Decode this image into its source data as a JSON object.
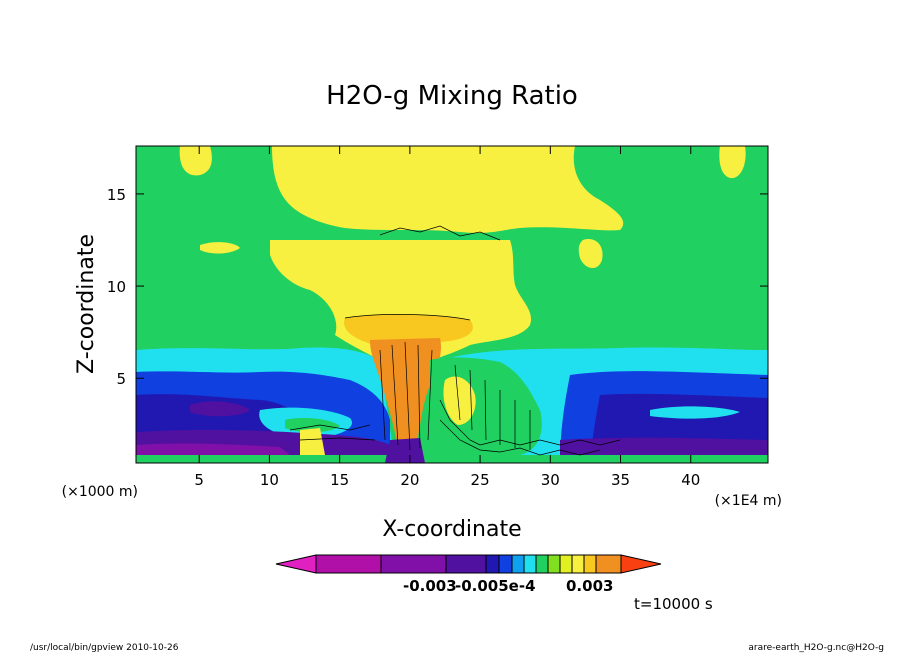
{
  "chart_data": {
    "type": "heatmap",
    "title": "H2O-g Mixing Ratio",
    "xlabel": "X-coordinate",
    "ylabel": "Z-coordinate",
    "x_unit_left": "(×1000 m)",
    "x_unit_right": "(×1E4 m)",
    "xlim": [
      0.5,
      45.5
    ],
    "ylim": [
      0.4,
      17.6
    ],
    "x_ticks": [
      5,
      10,
      15,
      20,
      25,
      30,
      35,
      40
    ],
    "y_ticks": [
      5,
      10,
      15
    ],
    "colorbar": {
      "colors": [
        "#e020c0",
        "#b010a8",
        "#8010a8",
        "#5010a0",
        "#2018b0",
        "#1040e0",
        "#10a0f0",
        "#20e0f0",
        "#20d060",
        "#80e020",
        "#e0f020",
        "#f8f040",
        "#f8c820",
        "#f09020",
        "#f84010"
      ],
      "tick_labels": [
        "-0.003",
        "-0.005e-4",
        "0.003"
      ]
    },
    "annotation": "t=10000 s",
    "footer_left": "/usr/local/bin/gpview  2010-10-26",
    "footer_right": "arare-earth_H2O-g.nc@H2O-g",
    "regions": [
      {
        "name": "deep-blue-layer",
        "color": "#2018b0",
        "z_min": 0.4,
        "z_max": 4.8
      },
      {
        "name": "cyan-layer",
        "color": "#20e0f0",
        "z_min": 4.8,
        "z_max": 6.5
      },
      {
        "name": "green-background",
        "color": "#20d060",
        "z_min": 6.5,
        "z_max": 17.6
      },
      {
        "name": "yellow-anvil",
        "color": "#f8f040",
        "x_range": [
          10.5,
          33
        ],
        "z_range": [
          7.5,
          17.6
        ]
      },
      {
        "name": "orange-core",
        "color": "#f09020",
        "x_range": [
          17,
          23
        ],
        "z_range": [
          0.5,
          7.2
        ]
      },
      {
        "name": "purple-surface",
        "color": "#8010a8",
        "x_range": [
          0.5,
          45.5
        ],
        "z_range": [
          0.4,
          1.5
        ]
      }
    ]
  }
}
